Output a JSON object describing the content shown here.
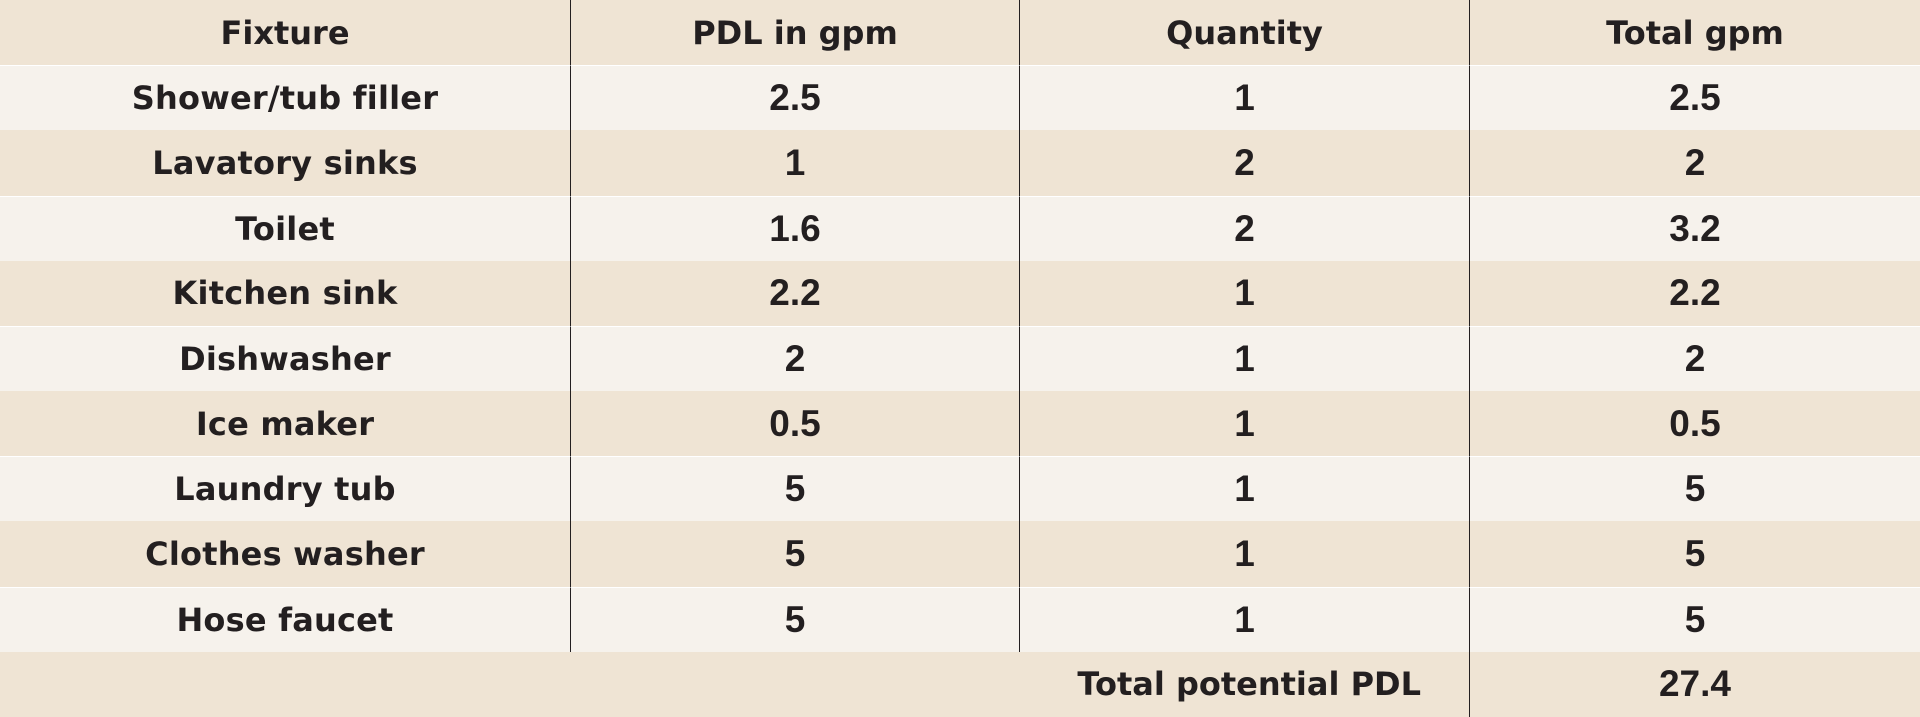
{
  "table": {
    "headers": [
      "Fixture",
      "PDL in gpm",
      "Quantity",
      "Total gpm"
    ],
    "rows": [
      {
        "fixture": "Shower/tub filler",
        "pdl": "2.5",
        "qty": "1",
        "total": "2.5"
      },
      {
        "fixture": "Lavatory sinks",
        "pdl": "1",
        "qty": "2",
        "total": "2"
      },
      {
        "fixture": "Toilet",
        "pdl": "1.6",
        "qty": "2",
        "total": "3.2"
      },
      {
        "fixture": "Kitchen sink",
        "pdl": "2.2",
        "qty": "1",
        "total": "2.2"
      },
      {
        "fixture": "Dishwasher",
        "pdl": "2",
        "qty": "1",
        "total": "2"
      },
      {
        "fixture": "Ice maker",
        "pdl": "0.5",
        "qty": "1",
        "total": "0.5"
      },
      {
        "fixture": "Laundry tub",
        "pdl": "5",
        "qty": "1",
        "total": "5"
      },
      {
        "fixture": "Clothes washer",
        "pdl": "5",
        "qty": "1",
        "total": "5"
      },
      {
        "fixture": "Hose faucet",
        "pdl": "5",
        "qty": "1",
        "total": "5"
      }
    ],
    "footer": {
      "label": "Total potential PDL",
      "value": "27.4"
    }
  },
  "colors": {
    "band_dark": "#efe4d4",
    "band_light": "#f6f2ec",
    "text": "#231f20"
  }
}
